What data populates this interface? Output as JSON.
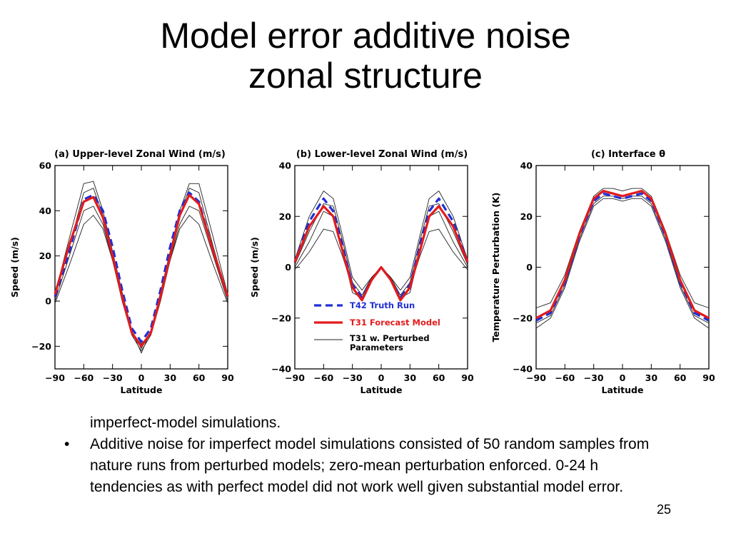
{
  "slide": {
    "title_line1": "Model error additive noise",
    "title_line2": "zonal structure",
    "bullet_continuation": "imperfect-model simulations.",
    "bullet_marker": "•",
    "bullet_text": "Additive noise for imperfect model simulations consisted of 50 random samples from nature runs from perturbed models; zero-mean perturbation enforced. 0-24 h tendencies as with perfect model did not work well given substantial model error.",
    "page_number": "25"
  },
  "colors": {
    "truth": "#1f2fd6",
    "forecast": "#e21b1b",
    "perturbed": "#222222",
    "axis": "#000000"
  },
  "legend": {
    "truth_label": "T42 Truth Run",
    "forecast_label": "T31 Forecast Model",
    "perturbed_label_line1": "T31 w. Perturbed",
    "perturbed_label_line2": "Parameters"
  },
  "chart_data": [
    {
      "type": "line",
      "title": "(a) Upper-level Zonal Wind (m/s)",
      "xlabel": "Latitude",
      "ylabel": "Speed (m/s)",
      "xlim": [
        -90,
        90
      ],
      "ylim": [
        -30,
        60
      ],
      "xticks": [
        -90,
        -60,
        -30,
        0,
        30,
        60,
        90
      ],
      "yticks": [
        -20,
        0,
        20,
        40,
        60
      ],
      "x": [
        -90,
        -75,
        -60,
        -50,
        -40,
        -30,
        -20,
        -10,
        0,
        10,
        20,
        30,
        40,
        50,
        60,
        75,
        90
      ],
      "series": [
        {
          "role": "truth",
          "values": [
            2,
            22,
            45,
            47,
            40,
            24,
            5,
            -12,
            -18,
            -12,
            5,
            24,
            40,
            48,
            44,
            22,
            2
          ]
        },
        {
          "role": "forecast",
          "values": [
            3,
            25,
            44,
            46,
            37,
            20,
            2,
            -14,
            -20,
            -14,
            2,
            20,
            38,
            47,
            43,
            22,
            2
          ]
        },
        {
          "role": "perturbed",
          "values": [
            3,
            28,
            52,
            53,
            40,
            22,
            4,
            -13,
            -23,
            -13,
            4,
            22,
            40,
            52,
            52,
            28,
            3
          ]
        },
        {
          "role": "perturbed",
          "values": [
            0,
            20,
            40,
            42,
            34,
            18,
            0,
            -15,
            -22,
            -15,
            0,
            18,
            34,
            42,
            40,
            20,
            0
          ]
        },
        {
          "role": "perturbed",
          "values": [
            -1,
            16,
            34,
            38,
            32,
            18,
            1,
            -14,
            -19,
            -14,
            1,
            18,
            32,
            38,
            34,
            16,
            -1
          ]
        },
        {
          "role": "perturbed",
          "values": [
            2,
            24,
            48,
            50,
            38,
            21,
            3,
            -13,
            -21,
            -13,
            3,
            21,
            38,
            50,
            48,
            24,
            2
          ]
        }
      ]
    },
    {
      "type": "line",
      "title": "(b) Lower-level Zonal Wind (m/s)",
      "xlabel": "Latitude",
      "ylabel": "Speed (m/s)",
      "xlim": [
        -90,
        90
      ],
      "ylim": [
        -40,
        40
      ],
      "xticks": [
        -90,
        -60,
        -30,
        0,
        30,
        60,
        90
      ],
      "yticks": [
        -40,
        -20,
        0,
        20,
        40
      ],
      "x": [
        -90,
        -75,
        -60,
        -50,
        -40,
        -30,
        -20,
        -10,
        0,
        10,
        20,
        30,
        40,
        50,
        60,
        75,
        90
      ],
      "series": [
        {
          "role": "truth",
          "values": [
            2,
            18,
            27,
            22,
            8,
            -7,
            -12,
            -5,
            0,
            -5,
            -12,
            -7,
            8,
            22,
            27,
            18,
            2
          ]
        },
        {
          "role": "forecast",
          "values": [
            2,
            16,
            24,
            20,
            6,
            -8,
            -13,
            -5,
            0,
            -5,
            -13,
            -8,
            6,
            20,
            24,
            16,
            2
          ]
        },
        {
          "role": "perturbed",
          "values": [
            3,
            20,
            30,
            27,
            12,
            -4,
            -9,
            -4,
            0,
            -4,
            -9,
            -4,
            12,
            27,
            30,
            20,
            3
          ]
        },
        {
          "role": "perturbed",
          "values": [
            0,
            10,
            22,
            20,
            6,
            -10,
            -12,
            -4,
            0,
            -4,
            -12,
            -10,
            6,
            20,
            22,
            10,
            0
          ]
        },
        {
          "role": "perturbed",
          "values": [
            -1,
            6,
            15,
            14,
            4,
            -8,
            -13,
            -5,
            0,
            -5,
            -13,
            -8,
            4,
            14,
            15,
            6,
            -1
          ]
        },
        {
          "role": "perturbed",
          "values": [
            1,
            14,
            25,
            24,
            10,
            -6,
            -11,
            -4,
            0,
            -4,
            -11,
            -6,
            10,
            24,
            25,
            14,
            1
          ]
        }
      ]
    },
    {
      "type": "line",
      "title": "(c) Interface θ",
      "xlabel": "Latitude",
      "ylabel": "Temperature Perturbation (K)",
      "xlim": [
        -90,
        90
      ],
      "ylim": [
        -40,
        40
      ],
      "xticks": [
        -90,
        -60,
        -30,
        0,
        30,
        60,
        90
      ],
      "yticks": [
        -40,
        -20,
        0,
        20,
        40
      ],
      "x": [
        -90,
        -75,
        -60,
        -45,
        -30,
        -20,
        -10,
        0,
        10,
        20,
        30,
        45,
        60,
        75,
        90
      ],
      "series": [
        {
          "role": "truth",
          "values": [
            -21,
            -18,
            -6,
            12,
            26,
            29,
            28,
            27,
            28,
            29,
            26,
            12,
            -6,
            -18,
            -21
          ]
        },
        {
          "role": "forecast",
          "values": [
            -20,
            -17,
            -5,
            13,
            27,
            30,
            29,
            28,
            29,
            30,
            27,
            13,
            -5,
            -17,
            -20
          ]
        },
        {
          "role": "perturbed",
          "values": [
            -16,
            -14,
            -3,
            14,
            28,
            31,
            31,
            30,
            31,
            31,
            28,
            14,
            -3,
            -14,
            -16
          ]
        },
        {
          "role": "perturbed",
          "values": [
            -24,
            -20,
            -8,
            10,
            24,
            27,
            27,
            26,
            27,
            27,
            24,
            10,
            -8,
            -20,
            -24
          ]
        },
        {
          "role": "perturbed",
          "values": [
            -22,
            -19,
            -7,
            11,
            25,
            28,
            28,
            27,
            28,
            28,
            25,
            11,
            -7,
            -19,
            -22
          ]
        }
      ]
    }
  ]
}
